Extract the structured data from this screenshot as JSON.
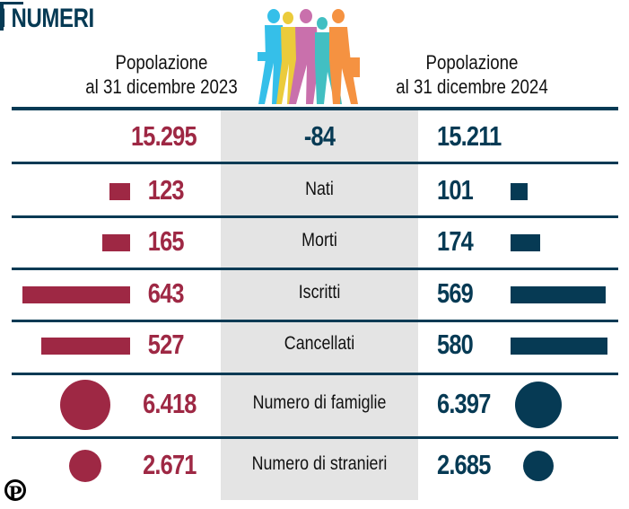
{
  "title": "I NUMERI",
  "header": {
    "left_line1": "Popolazione",
    "left_line2": "al 31 dicembre 2023",
    "right_line1": "Popolazione",
    "right_line2": "al 31 dicembre 2024"
  },
  "colors": {
    "year_2023": "#9e2844",
    "year_2024": "#063a54",
    "center_column": "#e4e4e4"
  },
  "icons": [
    "walking-people-illustration",
    "publisher-logo-p"
  ],
  "logo_text": "P",
  "chart_data": {
    "type": "table",
    "columns": [
      "al 31 dicembre 2023",
      "",
      "al 31 dicembre 2024"
    ],
    "population": {
      "v2023": "15.295",
      "change": "-84",
      "v2024": "15.211"
    },
    "rows": [
      {
        "label": "Nati",
        "v2023": 123,
        "v2024": 101,
        "t2023": "123",
        "t2024": "101",
        "mark": "bar"
      },
      {
        "label": "Morti",
        "v2023": 165,
        "v2024": 174,
        "t2023": "165",
        "t2024": "174",
        "mark": "bar"
      },
      {
        "label": "Iscritti",
        "v2023": 643,
        "v2024": 569,
        "t2023": "643",
        "t2024": "569",
        "mark": "bar"
      },
      {
        "label": "Cancellati",
        "v2023": 527,
        "v2024": 580,
        "t2023": "527",
        "t2024": "580",
        "mark": "bar"
      },
      {
        "label": "Numero di famiglie",
        "v2023": 6418,
        "v2024": 6397,
        "t2023": "6.418",
        "t2024": "6.397",
        "mark": "circle"
      },
      {
        "label": "Numero di stranieri",
        "v2023": 2671,
        "v2024": 2685,
        "t2023": "2.671",
        "t2024": "2.685",
        "mark": "circle"
      }
    ]
  }
}
